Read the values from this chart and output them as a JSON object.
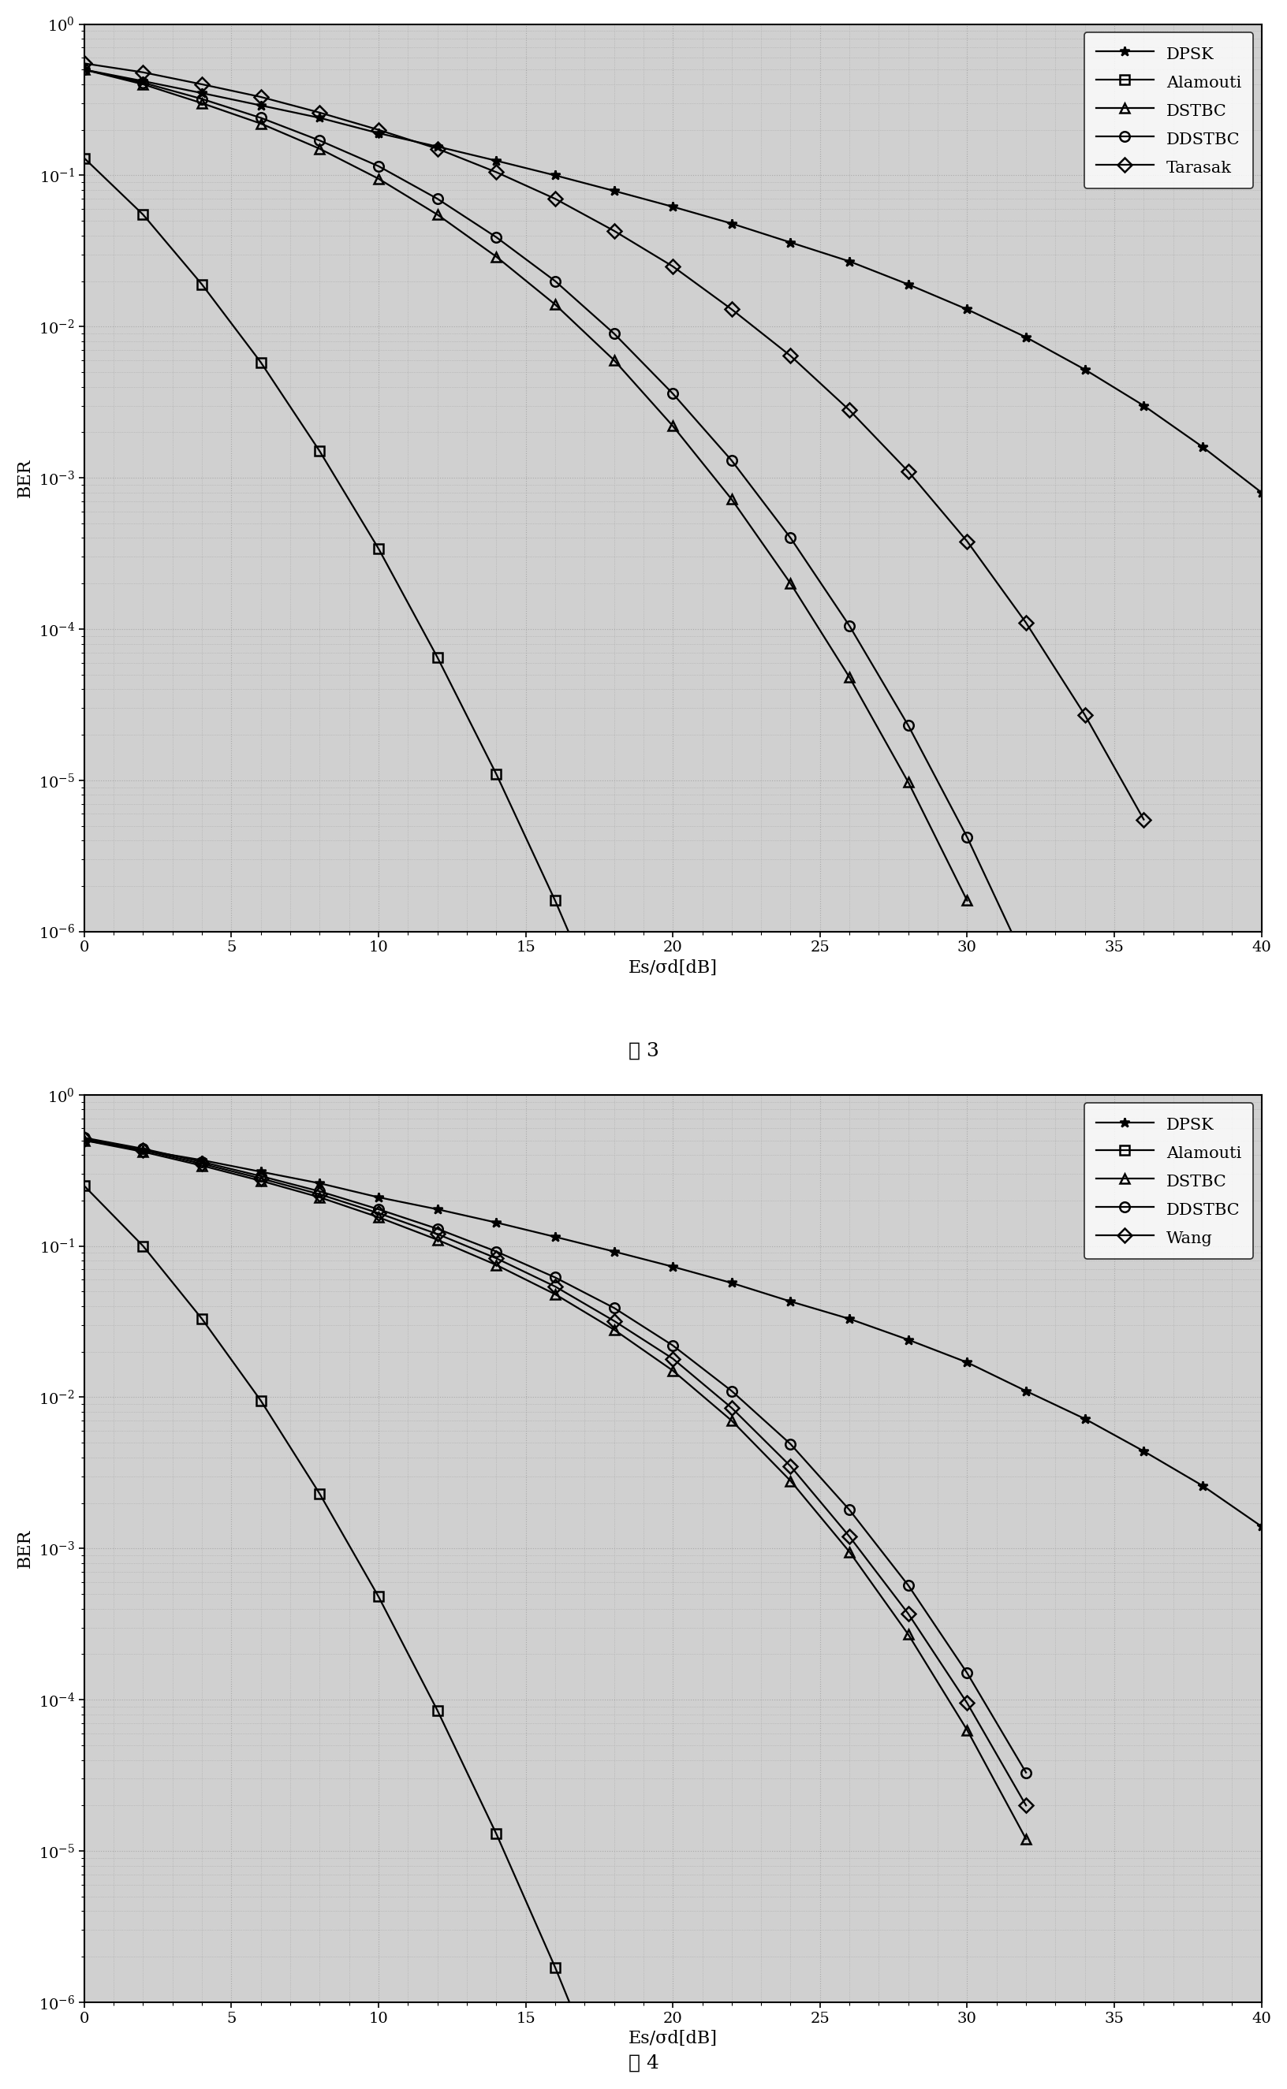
{
  "fig3": {
    "title": "图 3",
    "xlabel": "Es/σd[dB]",
    "ylabel": "BER",
    "xlim": [
      0,
      40
    ],
    "ylim_log": [
      -6,
      0
    ],
    "series": [
      {
        "label": "DPSK",
        "marker": "*",
        "x": [
          0,
          2,
          4,
          6,
          8,
          10,
          12,
          14,
          16,
          18,
          20,
          22,
          24,
          26,
          28,
          30,
          32,
          34,
          36,
          38,
          40
        ],
        "y": [
          0.5,
          0.42,
          0.35,
          0.29,
          0.24,
          0.19,
          0.155,
          0.125,
          0.1,
          0.079,
          0.062,
          0.048,
          0.036,
          0.027,
          0.019,
          0.013,
          0.0085,
          0.0052,
          0.003,
          0.0016,
          0.0008
        ]
      },
      {
        "label": "Alamouti",
        "marker": "s",
        "x": [
          0,
          2,
          4,
          6,
          8,
          10,
          12,
          14,
          16,
          18,
          20,
          22,
          24,
          26,
          28,
          30
        ],
        "y": [
          0.13,
          0.055,
          0.019,
          0.0058,
          0.0015,
          0.00034,
          6.5e-05,
          1.1e-05,
          1.6e-06,
          2e-07,
          2.2e-08,
          2.1e-09,
          1.7e-10,
          1.1e-11,
          6.2e-13,
          3.3e-14
        ]
      },
      {
        "label": "DSTBC",
        "marker": "^",
        "x": [
          0,
          2,
          4,
          6,
          8,
          10,
          12,
          14,
          16,
          18,
          20,
          22,
          24,
          26,
          28,
          30
        ],
        "y": [
          0.5,
          0.4,
          0.3,
          0.22,
          0.15,
          0.095,
          0.055,
          0.029,
          0.014,
          0.006,
          0.0022,
          0.00072,
          0.0002,
          4.8e-05,
          9.7e-06,
          1.6e-06
        ]
      },
      {
        "label": "DDSTBC",
        "marker": "o",
        "x": [
          0,
          2,
          4,
          6,
          8,
          10,
          12,
          14,
          16,
          18,
          20,
          22,
          24,
          26,
          28,
          30,
          32
        ],
        "y": [
          0.5,
          0.41,
          0.32,
          0.24,
          0.17,
          0.115,
          0.07,
          0.039,
          0.02,
          0.009,
          0.0036,
          0.0013,
          0.0004,
          0.000105,
          2.3e-05,
          4.2e-06,
          6.2e-07
        ]
      },
      {
        "label": "Tarasak",
        "marker": "D",
        "x": [
          0,
          2,
          4,
          6,
          8,
          10,
          12,
          14,
          16,
          18,
          20,
          22,
          24,
          26,
          28,
          30,
          32,
          34,
          36
        ],
        "y": [
          0.55,
          0.48,
          0.4,
          0.33,
          0.26,
          0.2,
          0.15,
          0.105,
          0.07,
          0.043,
          0.025,
          0.013,
          0.0064,
          0.0028,
          0.0011,
          0.00038,
          0.00011,
          2.7e-05,
          5.5e-06
        ]
      }
    ]
  },
  "fig4": {
    "title": "图 4",
    "xlabel": "Es/σd[dB]",
    "ylabel": "BER",
    "xlim": [
      0,
      40
    ],
    "ylim_log": [
      -6,
      0
    ],
    "series": [
      {
        "label": "DPSK",
        "marker": "*",
        "x": [
          0,
          2,
          4,
          6,
          8,
          10,
          12,
          14,
          16,
          18,
          20,
          22,
          24,
          26,
          28,
          30,
          32,
          34,
          36,
          38,
          40
        ],
        "y": [
          0.5,
          0.43,
          0.37,
          0.31,
          0.26,
          0.21,
          0.175,
          0.143,
          0.115,
          0.092,
          0.073,
          0.057,
          0.043,
          0.033,
          0.024,
          0.017,
          0.011,
          0.0072,
          0.0044,
          0.0026,
          0.0014
        ]
      },
      {
        "label": "Alamouti",
        "marker": "s",
        "x": [
          0,
          2,
          4,
          6,
          8,
          10,
          12,
          14,
          16,
          18,
          20,
          22,
          24,
          26,
          28,
          30
        ],
        "y": [
          0.25,
          0.1,
          0.033,
          0.0095,
          0.0023,
          0.00048,
          8.5e-05,
          1.3e-05,
          1.7e-06,
          1.9e-07,
          1.8e-08,
          1.5e-09,
          1.1e-10,
          7e-12,
          4e-13,
          2e-14
        ]
      },
      {
        "label": "DSTBC",
        "marker": "^",
        "x": [
          0,
          2,
          4,
          6,
          8,
          10,
          12,
          14,
          16,
          18,
          20,
          22,
          24,
          26,
          28,
          30,
          32
        ],
        "y": [
          0.5,
          0.42,
          0.34,
          0.27,
          0.21,
          0.155,
          0.11,
          0.075,
          0.048,
          0.028,
          0.015,
          0.007,
          0.0028,
          0.00095,
          0.00027,
          6.3e-05,
          1.2e-05
        ]
      },
      {
        "label": "DDSTBC",
        "marker": "o",
        "x": [
          0,
          2,
          4,
          6,
          8,
          10,
          12,
          14,
          16,
          18,
          20,
          22,
          24,
          26,
          28,
          30,
          32
        ],
        "y": [
          0.52,
          0.44,
          0.36,
          0.29,
          0.23,
          0.175,
          0.13,
          0.092,
          0.062,
          0.039,
          0.022,
          0.011,
          0.0049,
          0.0018,
          0.00057,
          0.00015,
          3.3e-05
        ]
      },
      {
        "label": "Wang",
        "marker": "D",
        "x": [
          0,
          2,
          4,
          6,
          8,
          10,
          12,
          14,
          16,
          18,
          20,
          22,
          24,
          26,
          28,
          30,
          32
        ],
        "y": [
          0.51,
          0.43,
          0.35,
          0.28,
          0.22,
          0.165,
          0.12,
          0.083,
          0.054,
          0.032,
          0.018,
          0.0085,
          0.0035,
          0.0012,
          0.00037,
          9.5e-05,
          2e-05
        ]
      }
    ]
  },
  "line_color": "black",
  "marker_size": 9,
  "linewidth": 1.6,
  "grid_color": "#aaaaaa",
  "bg_color": "#d0d0d0"
}
